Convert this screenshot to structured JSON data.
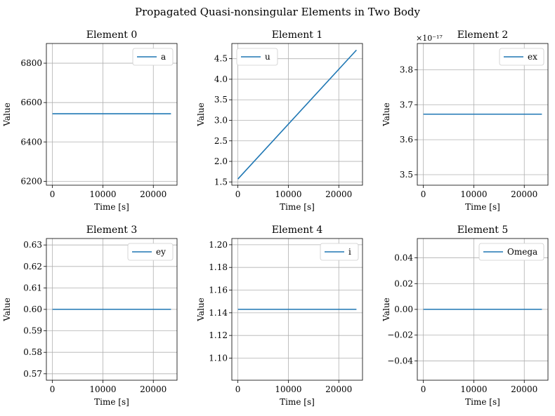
{
  "figure": {
    "title": "Propagated Quasi-nonsingular Elements in Two Body",
    "colors": {
      "series": "#1f77b4",
      "grid": "#b0b0b0"
    }
  },
  "chart_data": [
    {
      "type": "line",
      "title": "Element 0",
      "xlabel": "Time [s]",
      "ylabel": "Value",
      "xlim": [
        -1200,
        24700
      ],
      "ylim": [
        6180,
        6900
      ],
      "xticks": [
        0,
        10000,
        20000
      ],
      "xtick_labels": [
        "0",
        "10000",
        "20000"
      ],
      "yticks": [
        6200,
        6400,
        6600,
        6800
      ],
      "ytick_labels": [
        "6200",
        "6400",
        "6600",
        "6800"
      ],
      "offset_text": "",
      "series": [
        {
          "name": "a",
          "x": [
            0,
            23500
          ],
          "y": [
            6543,
            6543
          ]
        }
      ],
      "legend": "top-right",
      "grid": true
    },
    {
      "type": "line",
      "title": "Element 1",
      "xlabel": "Time [s]",
      "ylabel": "Value",
      "xlim": [
        -1200,
        24700
      ],
      "ylim": [
        1.42,
        4.87
      ],
      "xticks": [
        0,
        10000,
        20000
      ],
      "xtick_labels": [
        "0",
        "10000",
        "20000"
      ],
      "yticks": [
        1.5,
        2.0,
        2.5,
        3.0,
        3.5,
        4.0,
        4.5
      ],
      "ytick_labels": [
        "1.5",
        "2.0",
        "2.5",
        "3.0",
        "3.5",
        "4.0",
        "4.5"
      ],
      "offset_text": "",
      "series": [
        {
          "name": "u",
          "x": [
            0,
            23500
          ],
          "y": [
            1.57,
            4.71
          ]
        }
      ],
      "legend": "top-left",
      "grid": true
    },
    {
      "type": "line",
      "title": "Element 2",
      "xlabel": "Time [s]",
      "ylabel": "Value",
      "xlim": [
        -1200,
        24700
      ],
      "ylim": [
        3.47,
        3.875
      ],
      "xticks": [
        0,
        10000,
        20000
      ],
      "xtick_labels": [
        "0",
        "10000",
        "20000"
      ],
      "yticks": [
        3.5,
        3.6,
        3.7,
        3.8
      ],
      "ytick_labels": [
        "3.5",
        "3.6",
        "3.7",
        "3.8"
      ],
      "offset_text": "×10⁻¹⁷",
      "series": [
        {
          "name": "ex",
          "x": [
            0,
            23500
          ],
          "y": [
            3.673,
            3.673
          ]
        }
      ],
      "legend": "top-right",
      "grid": true
    },
    {
      "type": "line",
      "title": "Element 3",
      "xlabel": "Time [s]",
      "ylabel": "Value",
      "xlim": [
        -1200,
        24700
      ],
      "ylim": [
        0.567,
        0.633
      ],
      "xticks": [
        0,
        10000,
        20000
      ],
      "xtick_labels": [
        "0",
        "10000",
        "20000"
      ],
      "yticks": [
        0.57,
        0.58,
        0.59,
        0.6,
        0.61,
        0.62,
        0.63
      ],
      "ytick_labels": [
        "0.57",
        "0.58",
        "0.59",
        "0.60",
        "0.61",
        "0.62",
        "0.63"
      ],
      "offset_text": "",
      "series": [
        {
          "name": "ey",
          "x": [
            0,
            23500
          ],
          "y": [
            0.6,
            0.6
          ]
        }
      ],
      "legend": "top-right",
      "grid": true
    },
    {
      "type": "line",
      "title": "Element 4",
      "xlabel": "Time [s]",
      "ylabel": "Value",
      "xlim": [
        -1200,
        24700
      ],
      "ylim": [
        1.0805,
        1.2055
      ],
      "xticks": [
        0,
        10000,
        20000
      ],
      "xtick_labels": [
        "0",
        "10000",
        "20000"
      ],
      "yticks": [
        1.1,
        1.12,
        1.14,
        1.16,
        1.18,
        1.2
      ],
      "ytick_labels": [
        "1.10",
        "1.12",
        "1.14",
        "1.16",
        "1.18",
        "1.20"
      ],
      "offset_text": "",
      "series": [
        {
          "name": "i",
          "x": [
            0,
            23500
          ],
          "y": [
            1.143,
            1.143
          ]
        }
      ],
      "legend": "top-right",
      "grid": true
    },
    {
      "type": "line",
      "title": "Element 5",
      "xlabel": "Time [s]",
      "ylabel": "Value",
      "xlim": [
        -1200,
        24700
      ],
      "ylim": [
        -0.055,
        0.055
      ],
      "xticks": [
        0,
        10000,
        20000
      ],
      "xtick_labels": [
        "0",
        "10000",
        "20000"
      ],
      "yticks": [
        -0.04,
        -0.02,
        0.0,
        0.02,
        0.04
      ],
      "ytick_labels": [
        "−0.04",
        "−0.02",
        "0.00",
        "0.02",
        "0.04"
      ],
      "offset_text": "",
      "series": [
        {
          "name": "Omega",
          "x": [
            0,
            23500
          ],
          "y": [
            0,
            0
          ]
        }
      ],
      "legend": "top-right",
      "grid": true
    }
  ]
}
